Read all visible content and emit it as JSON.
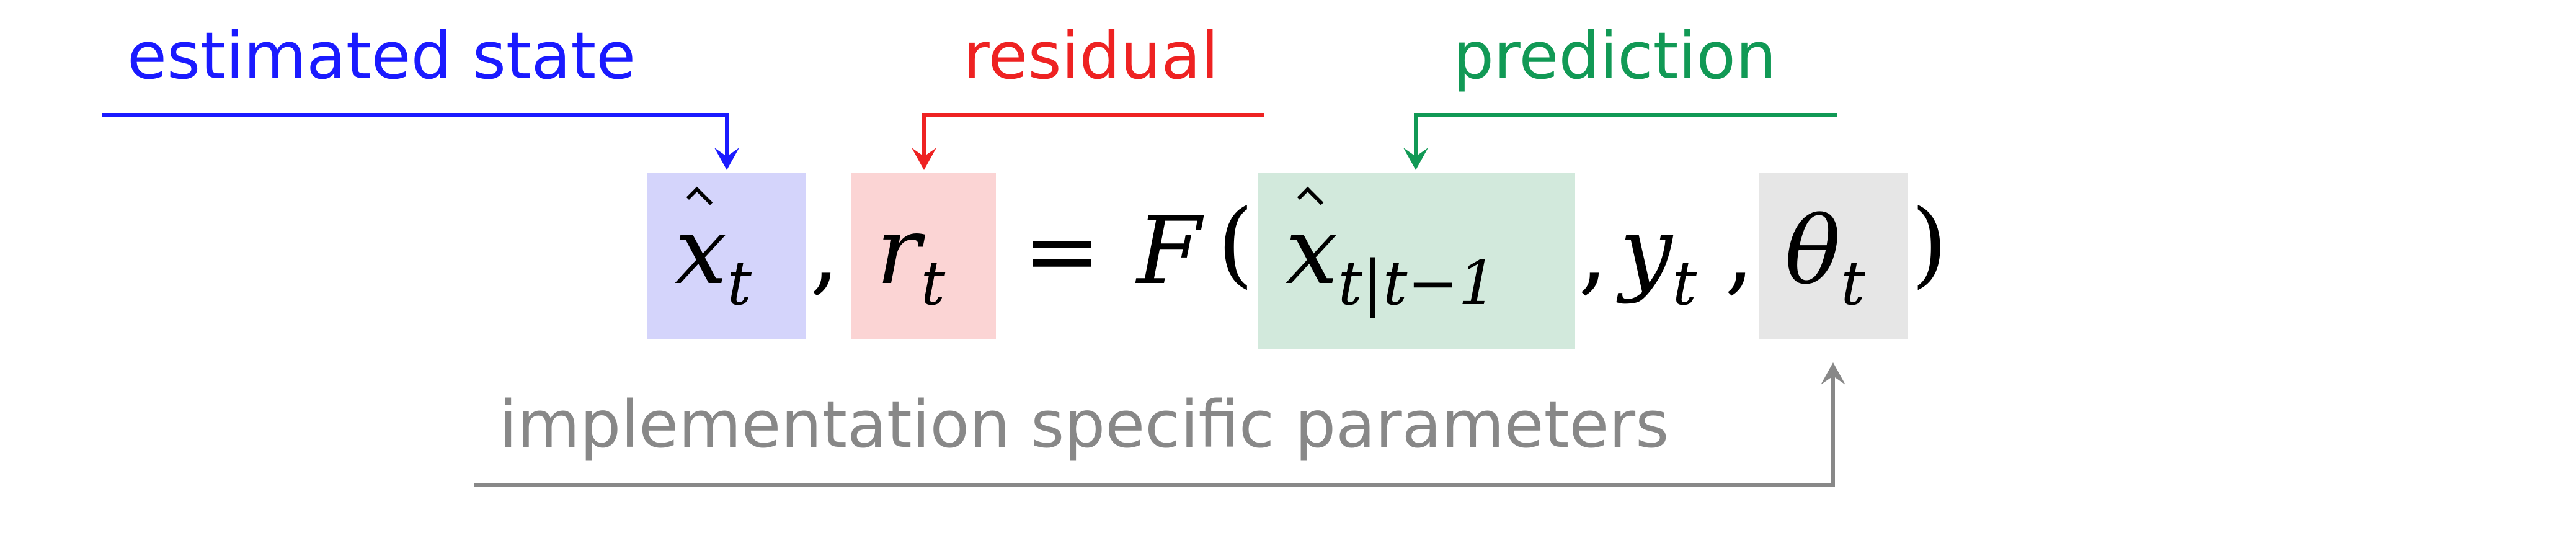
{
  "labels": {
    "estimated_state": "estimated state",
    "residual": "residual",
    "prediction": "prediction",
    "implementation": "implementation specific parameters"
  },
  "equation": {
    "estimated_state_symbol": "x",
    "estimated_state_subscript": "t",
    "separator_1": ",",
    "residual_symbol": "r",
    "residual_subscript": "t",
    "equals": "=",
    "function": "F",
    "open_paren": "(",
    "prediction_symbol": "x",
    "prediction_subscript": "t|t−1",
    "separator_2": ",",
    "measurement_symbol": "y",
    "measurement_subscript": "t",
    "separator_3": ",",
    "parameter_symbol": "θ",
    "parameter_subscript": "t",
    "close_paren": ")"
  },
  "colors": {
    "estimated_state": "#1a1aff",
    "residual": "#ee2222",
    "prediction": "#119955",
    "implementation": "#888888",
    "estimated_state_box": "#d4d4fb",
    "residual_box": "#fbd4d4",
    "prediction_box": "#d2e9dc",
    "parameter_box": "#e6e6e6"
  }
}
